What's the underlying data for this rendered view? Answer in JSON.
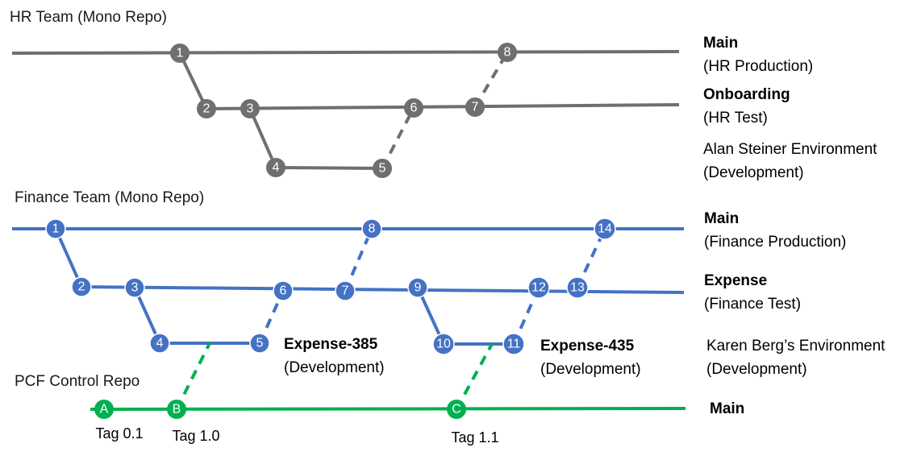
{
  "colors": {
    "hr": "#6f6f6f",
    "finance": "#4472c4",
    "pcf": "#00b050"
  },
  "hr": {
    "title": "HR Team (Mono Repo)",
    "main_label": "Main",
    "main_sub": "(HR Production)",
    "onboarding_label": "Onboarding",
    "onboarding_sub": "(HR Test)",
    "dev_label": "Alan Steiner Environment",
    "dev_sub": "(Development)",
    "nodes": [
      "1",
      "2",
      "3",
      "4",
      "5",
      "6",
      "7",
      "8"
    ]
  },
  "finance": {
    "title": "Finance Team (Mono Repo)",
    "main_label": "Main",
    "main_sub": "(Finance Production)",
    "expense_label": "Expense",
    "expense_sub": "(Finance Test)",
    "branch1_label": "Expense-385",
    "branch1_sub": "(Development)",
    "branch2_label": "Expense-435",
    "branch2_sub": "(Development)",
    "dev_label": "Karen Berg’s Environment",
    "dev_sub": "(Development)",
    "nodes": [
      "1",
      "2",
      "3",
      "4",
      "5",
      "6",
      "7",
      "8",
      "9",
      "10",
      "11",
      "12",
      "13",
      "14"
    ]
  },
  "pcf": {
    "title": "PCF Control Repo",
    "main_label": "Main",
    "nodes": [
      "A",
      "B",
      "C"
    ],
    "tags": [
      "Tag 0.1",
      "Tag 1.0",
      "Tag 1.1"
    ]
  }
}
